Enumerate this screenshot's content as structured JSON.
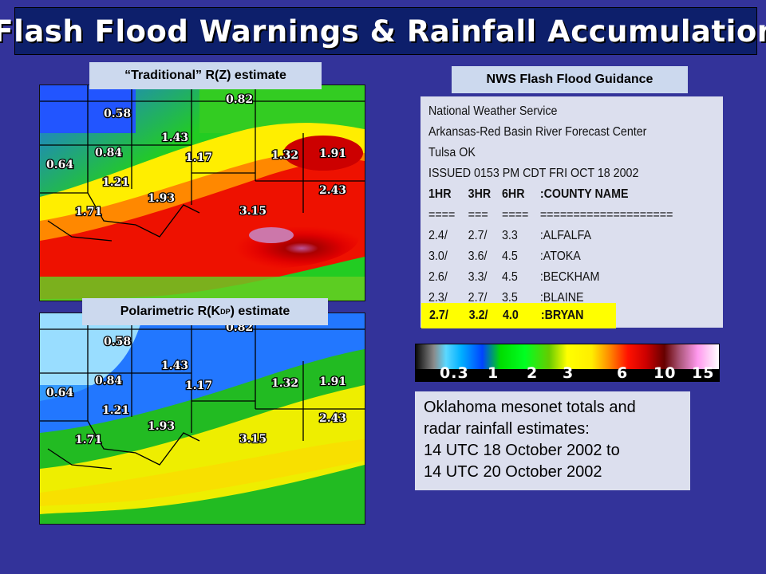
{
  "title": "Flash Flood Warnings & Rainfall Accumulation",
  "label_traditional": "“Traditional” R(Z) estimate",
  "label_polarimetric": {
    "prefix": "Polarimetric R(K",
    "subscript": "DP",
    "suffix": ") estimate"
  },
  "label_guidance": "NWS Flash Flood Guidance",
  "map_values": [
    "0.82",
    "0.58",
    "1.43",
    "0.64",
    "0.84",
    "1.17",
    "1.32",
    "1.91",
    "1.21",
    "1.93",
    "2.43",
    "1.71",
    "3.15"
  ],
  "guidance": {
    "header_lines": [
      "National Weather Service",
      "Arkansas-Red Basin River Forecast Center",
      "Tulsa OK",
      "ISSUED 0153 PM CDT FRI OCT 18 2002"
    ],
    "columns": [
      "1HR",
      "3HR",
      "6HR",
      ":COUNTY NAME"
    ],
    "separator": [
      "====",
      "===",
      "====",
      "===================="
    ],
    "rows": [
      [
        "2.4/",
        "2.7/",
        "3.3",
        ":ALFALFA"
      ],
      [
        "3.0/",
        "3.6/",
        "4.5",
        ":ATOKA"
      ],
      [
        "2.6/",
        "3.3/",
        "4.5",
        ":BECKHAM"
      ],
      [
        "2.3/",
        "2.7/",
        "3.5",
        ":BLAINE"
      ]
    ],
    "highlight_row": [
      "2.7/",
      "3.2/",
      "4.0",
      ":BRYAN"
    ]
  },
  "colorbar_ticks": [
    "0.3",
    "1",
    "2",
    "3",
    "6",
    "10",
    "15"
  ],
  "mesonet_lines": [
    "Oklahoma mesonet totals and",
    "radar rainfall estimates:",
    "14 UTC 18 October 2002 to",
    "14 UTC 20 October 2002"
  ],
  "colors": {
    "background": "#33339a",
    "title_bar": "#0d1f6b",
    "label_box": "#ccd9ee",
    "highlight": "#ffff00"
  }
}
